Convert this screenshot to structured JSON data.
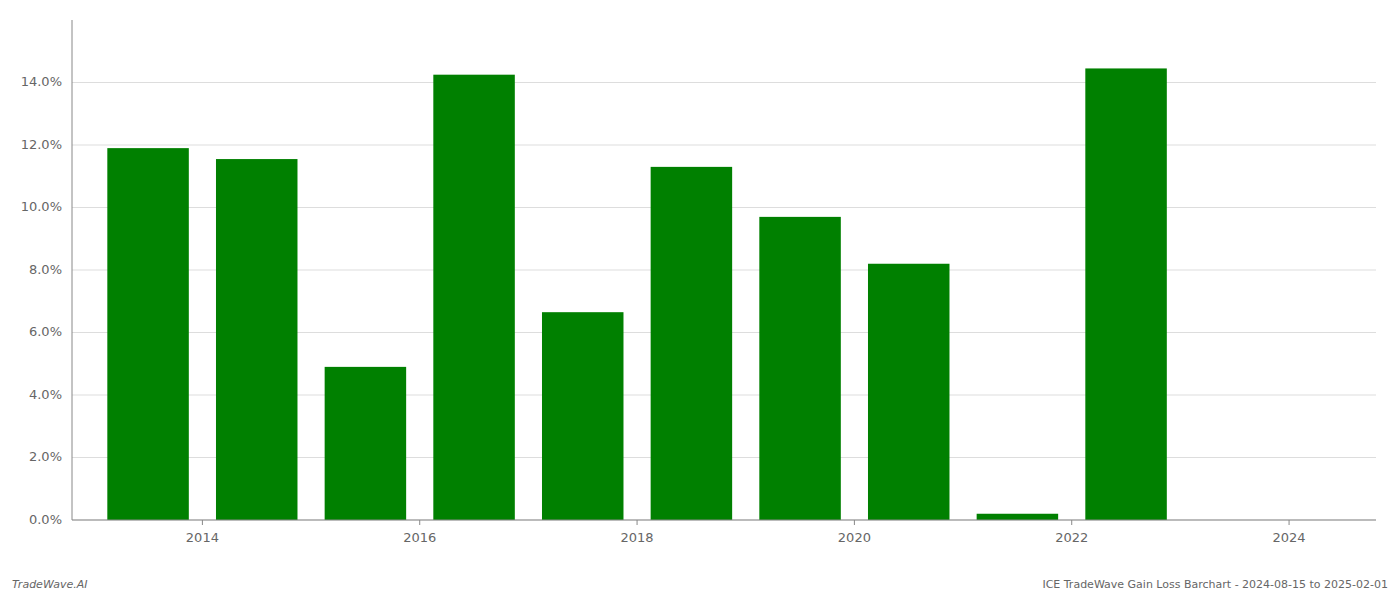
{
  "chart_data": {
    "type": "bar",
    "x": [
      2013.5,
      2014.5,
      2015.5,
      2016.5,
      2017.5,
      2018.5,
      2019.5,
      2020.5,
      2021.5,
      2022.5
    ],
    "values": [
      0.119,
      0.1155,
      0.049,
      0.1425,
      0.0665,
      0.113,
      0.097,
      0.082,
      0.002,
      0.1445
    ],
    "color": "#008000",
    "xlim": [
      2012.8,
      2024.8
    ],
    "xticks": [
      2014,
      2016,
      2018,
      2020,
      2022,
      2024
    ],
    "ylim": [
      0,
      0.16
    ],
    "yticks": [
      {
        "value": 0.0,
        "label": "0.0%"
      },
      {
        "value": 0.02,
        "label": "2.0%"
      },
      {
        "value": 0.04,
        "label": "4.0%"
      },
      {
        "value": 0.06,
        "label": "6.0%"
      },
      {
        "value": 0.08,
        "label": "8.0%"
      },
      {
        "value": 0.1,
        "label": "10.0%"
      },
      {
        "value": 0.12,
        "label": "12.0%"
      },
      {
        "value": 0.14,
        "label": "14.0%"
      }
    ],
    "grid": true,
    "annotations": [
      "TradeWave.AI",
      "ICE TradeWave Gain Loss Barchart - 2024-08-15 to 2025-02-01"
    ]
  }
}
